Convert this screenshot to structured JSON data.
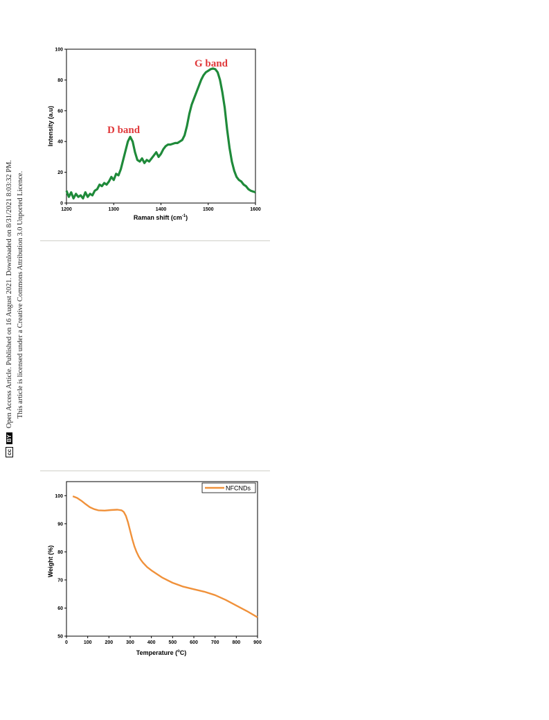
{
  "sidebar": {
    "line1": "Open Access Article. Published on 16 August 2021. Downloaded on 8/31/2021 8:03:32 PM.",
    "line2": "This article is licensed under a Creative Commons Attribution 3.0 Unported Licence.",
    "cc_badge": "cc",
    "by_badge": "BY",
    "icon": "creative-commons-icon"
  },
  "chart_data": [
    {
      "type": "line",
      "xlabel": "Raman shift (cm",
      "xlabel_sup": "-1",
      "xlabel_tail": ")",
      "ylabel": "Intensity (a.u)",
      "xlim": [
        1200,
        1600
      ],
      "ylim": [
        0,
        100
      ],
      "xticks": [
        "1200",
        "1300",
        "1400",
        "1500",
        "1600"
      ],
      "yticks": [
        "0",
        "20",
        "40",
        "60",
        "80",
        "100"
      ],
      "annotations": [
        {
          "text": "D band",
          "x": 1330,
          "y": 46
        },
        {
          "text": "G band",
          "x": 1510,
          "y": 90
        }
      ],
      "color": "#1f8a3a",
      "series": [
        {
          "x": [
            1200,
            1205,
            1210,
            1215,
            1220,
            1225,
            1230,
            1235,
            1240,
            1245,
            1250,
            1255,
            1260,
            1265,
            1270,
            1275,
            1280,
            1285,
            1290,
            1295,
            1300,
            1305,
            1310,
            1315,
            1320,
            1325,
            1330,
            1335,
            1340,
            1345,
            1350,
            1355,
            1360,
            1365,
            1370,
            1375,
            1380,
            1385,
            1390,
            1395,
            1400,
            1405,
            1410,
            1415,
            1420,
            1425,
            1430,
            1435,
            1440,
            1445,
            1450,
            1455,
            1460,
            1465,
            1470,
            1475,
            1480,
            1485,
            1490,
            1495,
            1500,
            1505,
            1510,
            1515,
            1520,
            1525,
            1530,
            1535,
            1540,
            1545,
            1550,
            1555,
            1560,
            1565,
            1570,
            1575,
            1580,
            1585,
            1590,
            1595,
            1600
          ],
          "values": [
            8,
            4,
            7,
            3,
            6,
            4,
            5,
            3,
            7,
            4,
            6,
            5,
            8,
            9,
            12,
            11,
            13,
            12,
            14,
            17,
            15,
            19,
            18,
            22,
            28,
            34,
            40,
            43,
            40,
            33,
            28,
            27,
            29,
            26,
            28,
            27,
            29,
            31,
            33,
            30,
            32,
            35,
            37,
            38,
            38,
            38.5,
            39,
            39,
            40,
            41,
            44,
            50,
            58,
            64,
            68,
            72,
            76,
            80,
            83,
            85,
            86,
            87,
            87.5,
            87,
            85,
            80,
            72,
            62,
            48,
            36,
            27,
            21,
            17,
            15,
            14,
            12,
            11,
            9,
            8,
            7.5,
            7
          ]
        }
      ]
    },
    {
      "type": "line",
      "xlabel": "Temperature (",
      "xlabel_sup": "o",
      "xlabel_tail": "C)",
      "ylabel": "Weight (%)",
      "xlim": [
        0,
        900
      ],
      "ylim": [
        50,
        105
      ],
      "xticks": [
        "0",
        "100",
        "200",
        "300",
        "400",
        "500",
        "600",
        "700",
        "800",
        "900"
      ],
      "yticks": [
        "50",
        "60",
        "70",
        "80",
        "90",
        "100"
      ],
      "legend": "top-right",
      "color": "#f0913a",
      "series": [
        {
          "name": "NFCNDs",
          "x": [
            30,
            50,
            70,
            90,
            110,
            130,
            150,
            180,
            210,
            240,
            260,
            270,
            280,
            290,
            300,
            310,
            320,
            330,
            340,
            350,
            360,
            380,
            400,
            450,
            500,
            550,
            600,
            650,
            700,
            750,
            800,
            850,
            900
          ],
          "values": [
            99.8,
            99.2,
            98.2,
            97,
            95.9,
            95.2,
            94.8,
            94.7,
            94.9,
            95,
            94.8,
            94.2,
            92.8,
            90.5,
            87.5,
            84.5,
            82,
            80,
            78.4,
            77.2,
            76.2,
            74.6,
            73.4,
            70.9,
            69,
            67.6,
            66.7,
            65.8,
            64.6,
            62.9,
            60.9,
            58.9,
            56.7
          ]
        }
      ]
    }
  ]
}
